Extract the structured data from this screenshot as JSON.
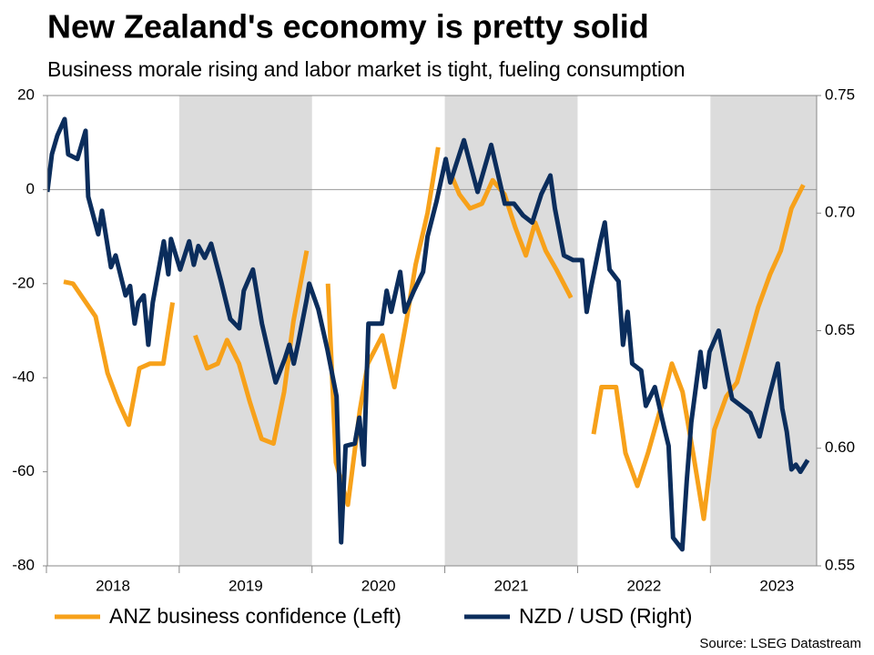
{
  "chart_data": {
    "type": "line",
    "title": "New Zealand's economy is pretty solid",
    "subtitle": "Business morale rising and labor market is tight, fueling consumption",
    "source": "Source: LSEG Datastream",
    "xlim": [
      2018,
      2023.8
    ],
    "xticks": [
      2018,
      2019,
      2020,
      2021,
      2022,
      2023
    ],
    "ylim": [
      -80,
      20
    ],
    "yticks": [
      -80,
      -60,
      -40,
      -20,
      0,
      20
    ],
    "y2lim": [
      0.55,
      0.75
    ],
    "y2ticks": [
      0.55,
      {
        "value": 0.6,
        "label": "0.60"
      },
      0.65,
      {
        "value": 0.7,
        "label": "0.70"
      },
      0.75
    ],
    "hlines": [
      0
    ],
    "bands": [
      [
        2019,
        2020
      ],
      [
        2021,
        2022
      ],
      [
        2023,
        2024
      ]
    ],
    "legend": "bottom",
    "series": [
      {
        "name": "ANZ business confidence (Left)",
        "color": "#f7a11a",
        "x": [
          2018.13,
          2018.2,
          2018.37,
          2018.46,
          2018.54,
          2018.62,
          2018.7,
          2018.78,
          2018.88,
          2018.95,
          2019.03,
          2019.12,
          2019.21,
          2019.29,
          2019.36,
          2019.45,
          2019.53,
          2019.62,
          2019.71,
          2019.79,
          2019.86,
          2019.96,
          2020.04,
          2020.12,
          2020.18,
          2020.27,
          2020.36,
          2020.42,
          2020.53,
          2020.62,
          2020.71,
          2020.78,
          2020.87,
          2020.95,
          2021.0,
          2021.05,
          2021.11,
          2021.19,
          2021.28,
          2021.36,
          2021.45,
          2021.53,
          2021.61,
          2021.68,
          2021.76,
          2021.84,
          2021.95,
          2022.03,
          2022.12,
          2022.18,
          2022.29,
          2022.36,
          2022.45,
          2022.53,
          2022.62,
          2022.71,
          2022.79,
          2022.87,
          2022.95,
          2023.03,
          2023.12,
          2023.2,
          2023.28,
          2023.36,
          2023.45,
          2023.53,
          2023.61,
          2023.7
        ],
        "values": [
          -19.6,
          -20,
          -27,
          -39,
          -45,
          -50,
          -38,
          -37,
          -37,
          -24,
          null,
          -31,
          -38,
          -37,
          -32,
          -37,
          -45,
          -53,
          -54,
          -43,
          -28,
          -13,
          null,
          -20,
          -58,
          -67,
          -47,
          -37,
          -31,
          -42,
          -28,
          -16,
          -5,
          9,
          null,
          3,
          -1,
          -4,
          -3,
          2,
          -1,
          -8,
          -14,
          -7,
          -13,
          -17,
          -23,
          null,
          -52,
          -42,
          -42,
          -56,
          -63,
          -56,
          -47,
          -37,
          -43,
          -56,
          -70,
          -51,
          -44,
          -41,
          -33,
          -25,
          -18,
          -13,
          -4,
          1
        ]
      },
      {
        "name": "NZD / USD (Right)",
        "color": "#0b2d5c",
        "axis": "y2",
        "x": [
          2018.007,
          2018.041,
          2018.082,
          2018.137,
          2018.164,
          2018.233,
          2018.295,
          2018.315,
          2018.39,
          2018.418,
          2018.486,
          2018.521,
          2018.596,
          2018.63,
          2018.664,
          2018.692,
          2018.733,
          2018.767,
          2018.801,
          2018.884,
          2018.918,
          2018.938,
          2019.007,
          2019.075,
          2019.11,
          2019.144,
          2019.192,
          2019.24,
          2019.315,
          2019.384,
          2019.452,
          2019.486,
          2019.555,
          2019.623,
          2019.692,
          2019.726,
          2019.795,
          2019.829,
          2019.863,
          2019.897,
          2019.959,
          2019.979,
          2020.048,
          2020.116,
          2020.185,
          2020.219,
          2020.253,
          2020.322,
          2020.356,
          2020.39,
          2020.425,
          2020.527,
          2020.562,
          2020.596,
          2020.664,
          2020.699,
          2020.767,
          2020.836,
          2020.87,
          2020.938,
          2021.007,
          2021.041,
          2021.144,
          2021.247,
          2021.349,
          2021.452,
          2021.521,
          2021.589,
          2021.658,
          2021.726,
          2021.795,
          2021.829,
          2021.897,
          2021.966,
          2022.034,
          2022.068,
          2022.103,
          2022.171,
          2022.205,
          2022.24,
          2022.308,
          2022.342,
          2022.377,
          2022.411,
          2022.479,
          2022.514,
          2022.582,
          2022.651,
          2022.685,
          2022.719,
          2022.788,
          2022.822,
          2022.856,
          2022.925,
          2022.959,
          2022.993,
          2023.062,
          2023.13,
          2023.164,
          2023.233,
          2023.301,
          2023.37,
          2023.438,
          2023.507,
          2023.541,
          2023.575,
          2023.61,
          2023.644,
          2023.678,
          2023.733
        ],
        "values": [
          0.709,
          0.725,
          0.733,
          0.74,
          0.725,
          0.723,
          0.735,
          0.707,
          0.691,
          0.701,
          0.677,
          0.682,
          0.665,
          0.669,
          0.653,
          0.662,
          0.665,
          0.644,
          0.662,
          0.688,
          0.674,
          0.689,
          0.676,
          0.688,
          0.678,
          0.686,
          0.681,
          0.687,
          0.671,
          0.655,
          0.651,
          0.667,
          0.676,
          0.653,
          0.636,
          0.628,
          0.638,
          0.644,
          0.636,
          0.645,
          0.663,
          0.67,
          0.659,
          0.642,
          0.622,
          0.56,
          0.601,
          0.602,
          0.613,
          0.593,
          0.653,
          0.653,
          0.667,
          0.658,
          0.675,
          0.658,
          0.667,
          0.675,
          0.69,
          0.705,
          0.723,
          0.713,
          0.731,
          0.709,
          0.729,
          0.704,
          0.704,
          0.699,
          0.696,
          0.708,
          0.716,
          0.702,
          0.682,
          0.68,
          0.68,
          0.658,
          0.669,
          0.688,
          0.696,
          0.676,
          0.671,
          0.644,
          0.658,
          0.636,
          0.633,
          0.618,
          0.626,
          0.609,
          0.601,
          0.562,
          0.557,
          0.586,
          0.611,
          0.641,
          0.626,
          0.641,
          0.65,
          0.63,
          0.621,
          0.618,
          0.615,
          0.605,
          0.621,
          0.636,
          0.617,
          0.607,
          0.591,
          0.593,
          0.59,
          0.595
        ]
      }
    ]
  }
}
